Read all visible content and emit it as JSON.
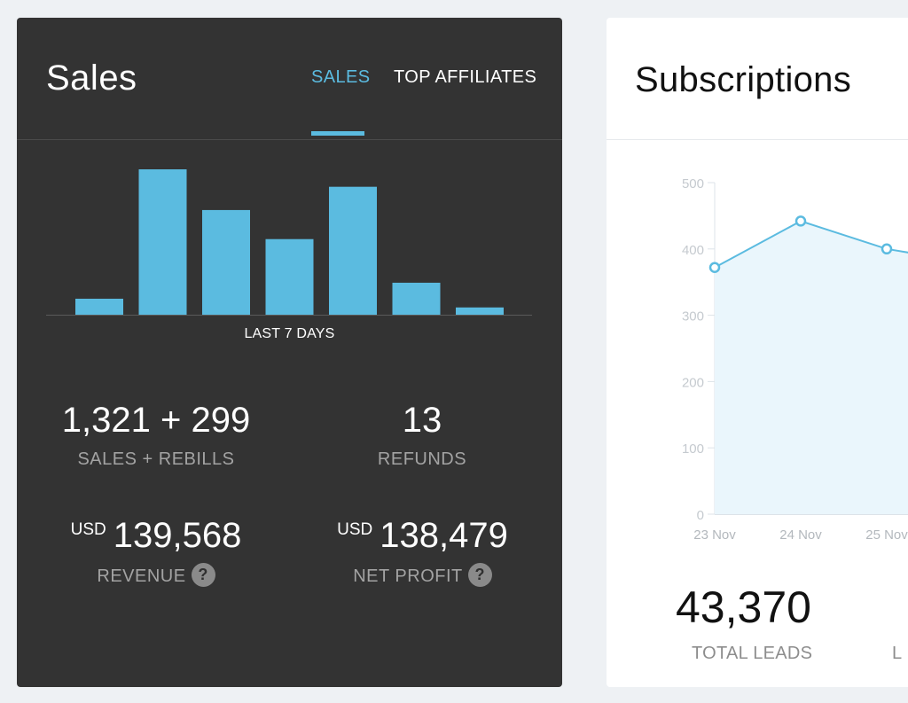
{
  "sales": {
    "title": "Sales",
    "tabs": [
      {
        "label": "SALES",
        "active": true
      },
      {
        "label": "TOP AFFILIATES",
        "active": false
      }
    ],
    "period_label": "LAST 7 DAYS",
    "stats": {
      "sales_rebills": {
        "value": "1,321 + 299",
        "label": "SALES + REBILLS"
      },
      "refunds": {
        "value": "13",
        "label": "REFUNDS"
      },
      "revenue": {
        "currency": "USD",
        "value": "139,568",
        "label": "REVENUE"
      },
      "net_profit": {
        "currency": "USD",
        "value": "138,479",
        "label": "NET PROFIT"
      }
    },
    "help_glyph": "?",
    "accent_color": "#5bbbe0"
  },
  "subscriptions": {
    "title": "Subscriptions",
    "total_leads": {
      "value": "43,370",
      "label": "TOTAL LEADS"
    },
    "second_label_partial": "L"
  },
  "chart_data": [
    {
      "type": "bar",
      "title": "",
      "xlabel": "LAST 7 DAYS",
      "ylabel": "",
      "values": [
        11,
        100,
        72,
        52,
        88,
        22,
        5
      ],
      "ylim": [
        0,
        100
      ],
      "color": "#5bbbe0"
    },
    {
      "type": "area",
      "title": "",
      "x": [
        "23 Nov",
        "24 Nov",
        "25 Nov"
      ],
      "values": [
        372,
        442,
        400
      ],
      "yticks": [
        0,
        100,
        200,
        300,
        400,
        500
      ],
      "ylim": [
        0,
        500
      ],
      "grid": false,
      "color": "#5bbbe0"
    }
  ]
}
